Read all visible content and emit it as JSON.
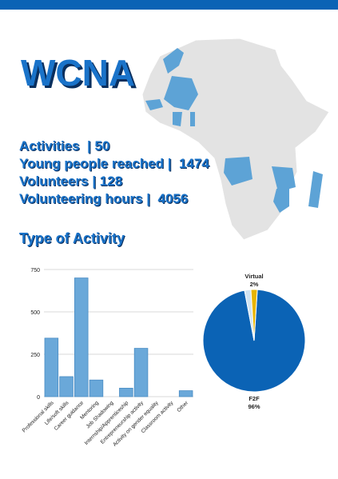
{
  "header": {
    "title": "WCNA"
  },
  "stats": [
    {
      "label": "Activities  | 50"
    },
    {
      "label": "Young people reached |  1474"
    },
    {
      "label": "Volunteers | 128"
    },
    {
      "label": "Volunteering hours |  4056"
    }
  ],
  "section": {
    "title": "Type of Activity"
  },
  "colors": {
    "accent": "#1a73c9",
    "bar": "#6aa8d9",
    "f2f": "#0b63b5",
    "virtual": "#e8b400",
    "map_land": "#e3e3e3",
    "map_highlight": "#5da3d6"
  },
  "chart_data": [
    {
      "type": "bar",
      "categories": [
        "Professional skills",
        "Life/soft skills",
        "Career guidance",
        "Mentoring",
        "Job Shadowing",
        "Internship/Apprenticeship",
        "Entrepreneurship activity",
        "Activity on gender equality",
        "Classroom activity",
        "Other"
      ],
      "values": [
        345,
        118,
        700,
        98,
        0,
        50,
        285,
        0,
        0,
        35
      ],
      "yticks": [
        0,
        250,
        500,
        750
      ],
      "ylim": [
        0,
        750
      ],
      "grid": true
    },
    {
      "type": "pie",
      "slices": [
        {
          "name": "F2F",
          "value": 96,
          "label": "96%"
        },
        {
          "name": "Virtual",
          "value": 2,
          "label": "2%"
        },
        {
          "name": "",
          "value": 2,
          "label": ""
        }
      ]
    }
  ]
}
